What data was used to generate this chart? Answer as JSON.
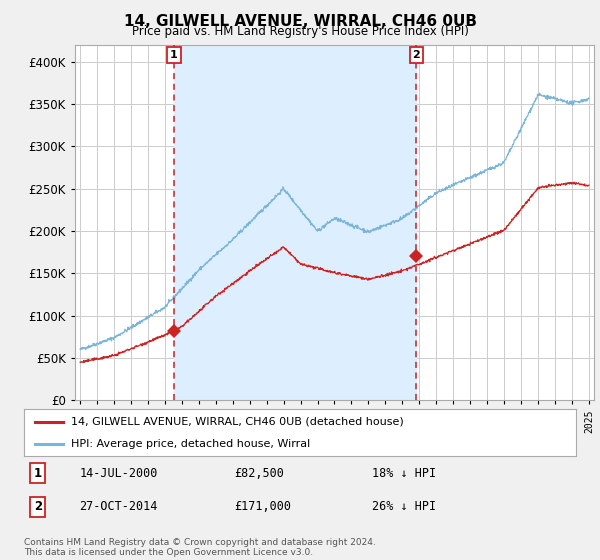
{
  "title": "14, GILWELL AVENUE, WIRRAL, CH46 0UB",
  "subtitle": "Price paid vs. HM Land Registry's House Price Index (HPI)",
  "ylim": [
    0,
    420000
  ],
  "yticks": [
    0,
    50000,
    100000,
    150000,
    200000,
    250000,
    300000,
    350000,
    400000
  ],
  "xlim_start": 1994.7,
  "xlim_end": 2025.3,
  "hpi_color": "#7ab4d8",
  "price_color": "#cc2222",
  "annotation_color": "#cc2222",
  "shade_color": "#ddeeff",
  "grid_color": "#cccccc",
  "chart_bg": "#ffffff",
  "fig_bg": "#f0f0f0",
  "legend_label_price": "14, GILWELL AVENUE, WIRRAL, CH46 0UB (detached house)",
  "legend_label_hpi": "HPI: Average price, detached house, Wirral",
  "sale1_date": "14-JUL-2000",
  "sale1_price": 82500,
  "sale1_pct": "18% ↓ HPI",
  "sale1_year": 2000.54,
  "sale2_date": "27-OCT-2014",
  "sale2_price": 171000,
  "sale2_pct": "26% ↓ HPI",
  "sale2_year": 2014.82,
  "footnote": "Contains HM Land Registry data © Crown copyright and database right 2024.\nThis data is licensed under the Open Government Licence v3.0."
}
